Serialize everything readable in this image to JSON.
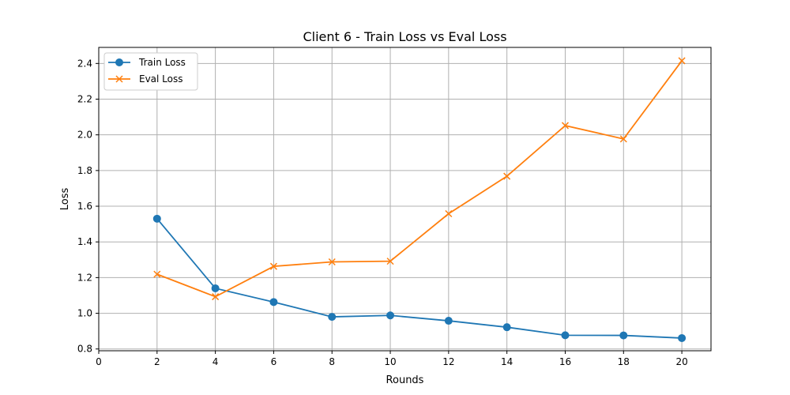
{
  "chart_data": {
    "type": "line",
    "title": "Client 6 - Train Loss vs Eval Loss",
    "xlabel": "Rounds",
    "ylabel": "Loss",
    "xlim": [
      0,
      21
    ],
    "ylim": [
      0.79,
      2.49
    ],
    "xticks": [
      "0",
      "2",
      "4",
      "6",
      "8",
      "10",
      "12",
      "14",
      "16",
      "18",
      "20"
    ],
    "yticks": [
      "0.8",
      "1.0",
      "1.2",
      "1.4",
      "1.6",
      "1.8",
      "2.0",
      "2.2",
      "2.4"
    ],
    "grid": true,
    "legend_position": "top-left",
    "x": [
      2,
      4,
      6,
      8,
      10,
      12,
      14,
      16,
      18,
      20
    ],
    "series": [
      {
        "name": "Train Loss",
        "color": "#1f77b4",
        "marker": "circle",
        "values": [
          1.53,
          1.14,
          1.063,
          0.98,
          0.988,
          0.958,
          0.922,
          0.877,
          0.876,
          0.861
        ]
      },
      {
        "name": "Eval Loss",
        "color": "#ff7f0e",
        "marker": "x",
        "values": [
          1.219,
          1.093,
          1.263,
          1.288,
          1.292,
          1.558,
          1.768,
          2.052,
          1.977,
          2.415
        ]
      }
    ]
  }
}
